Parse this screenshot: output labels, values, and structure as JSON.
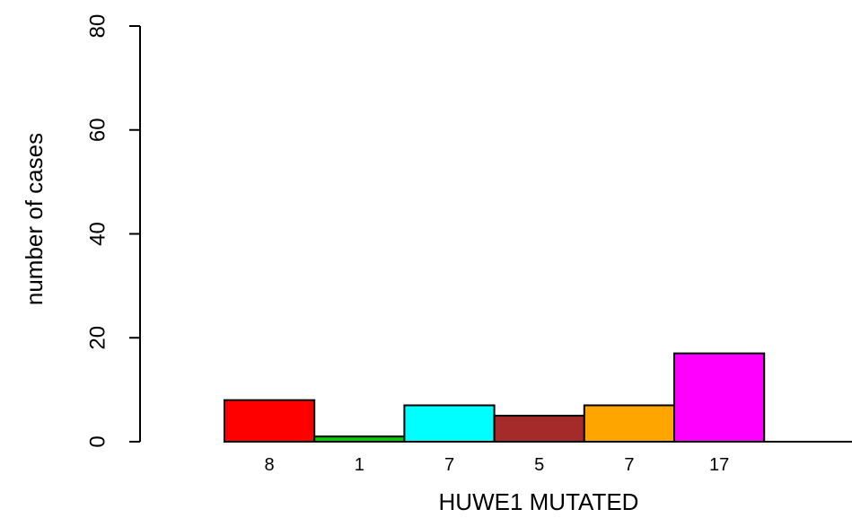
{
  "chart_data": {
    "type": "bar",
    "xlabel": "HUWE1 MUTATED",
    "ylabel": "number of cases",
    "ylim": [
      0,
      80
    ],
    "yticks": [
      "0",
      "20",
      "40",
      "60",
      "80"
    ],
    "categories": [
      "8",
      "1",
      "7",
      "5",
      "7",
      "17"
    ],
    "values": [
      8,
      1,
      7,
      5,
      7,
      17
    ],
    "colors": [
      "#ff0000",
      "#00cc00",
      "#00ffff",
      "#a52a2a",
      "#ffa500",
      "#ff00ff"
    ],
    "grid": false,
    "legend": "none"
  }
}
